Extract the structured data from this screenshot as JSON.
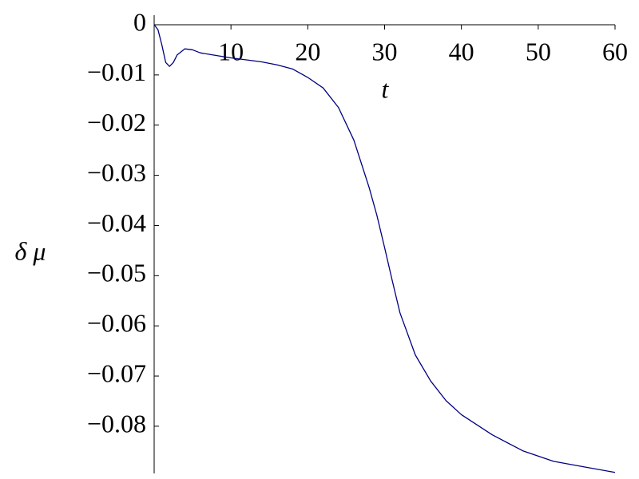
{
  "chart_data": {
    "type": "line",
    "x_label": "t",
    "y_label": "δ μ",
    "x": [
      0,
      0.5,
      1,
      1.5,
      2,
      2.5,
      3,
      4,
      5,
      6,
      8,
      10,
      12,
      14,
      16,
      18,
      20,
      22,
      24,
      26,
      28,
      29,
      30,
      31,
      32,
      34,
      36,
      38,
      40,
      44,
      48,
      52,
      56,
      60
    ],
    "series": [
      {
        "color": "#000080",
        "values": [
          0,
          -0.001,
          -0.004,
          -0.0075,
          -0.0083,
          -0.0075,
          -0.006,
          -0.0048,
          -0.005,
          -0.0056,
          -0.0061,
          -0.0066,
          -0.007,
          -0.0074,
          -0.008,
          -0.0088,
          -0.0105,
          -0.0126,
          -0.0165,
          -0.023,
          -0.0325,
          -0.038,
          -0.0444,
          -0.051,
          -0.0574,
          -0.0658,
          -0.071,
          -0.0749,
          -0.0777,
          -0.0817,
          -0.0849,
          -0.087,
          -0.0881,
          -0.0892
        ]
      }
    ],
    "xlim": [
      0,
      60
    ],
    "ylim": [
      -0.0894,
      0
    ],
    "xticks": [
      10,
      20,
      30,
      40,
      50,
      60
    ],
    "yticks": [
      0,
      {
        "value": -0.01,
        "label": "−0.01"
      },
      {
        "value": -0.02,
        "label": "−0.02"
      },
      {
        "value": -0.03,
        "label": "−0.03"
      },
      {
        "value": -0.04,
        "label": "−0.04"
      },
      {
        "value": -0.05,
        "label": "−0.05"
      },
      {
        "value": -0.06,
        "label": "−0.06"
      },
      {
        "value": -0.07,
        "label": "−0.07"
      },
      {
        "value": -0.08,
        "label": "−0.08"
      }
    ]
  }
}
